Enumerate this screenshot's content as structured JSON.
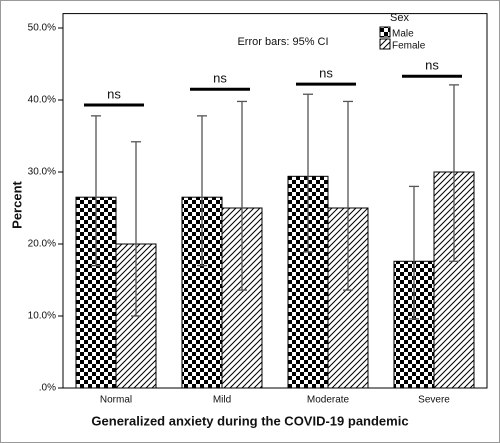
{
  "chart_data": {
    "type": "bar",
    "x_label": "Generalized anxiety during the COVID-19 pandemic",
    "y_label": "Percent",
    "annotation": "Error bars: 95% CI",
    "legend_title": "Sex",
    "categories": [
      "Normal",
      "Mild",
      "Moderate",
      "Severe"
    ],
    "series": [
      {
        "name": "Male",
        "pattern": "checker",
        "color": "#000000",
        "values": [
          26.5,
          26.5,
          29.4,
          17.6
        ],
        "ci_low": [
          17.0,
          17.0,
          18.9,
          9.6
        ],
        "ci_high": [
          37.8,
          37.8,
          40.8,
          28.0
        ]
      },
      {
        "name": "Female",
        "pattern": "hatch",
        "color": "#000000",
        "values": [
          20.0,
          25.0,
          25.0,
          30.0
        ],
        "ci_low": [
          10.0,
          13.6,
          13.6,
          17.6
        ],
        "ci_high": [
          34.2,
          39.8,
          39.8,
          42.1
        ]
      }
    ],
    "significance": [
      {
        "label": "ns",
        "y": 39.3
      },
      {
        "label": "ns",
        "y": 41.5
      },
      {
        "label": "ns",
        "y": 42.2
      },
      {
        "label": "ns",
        "y": 43.3
      }
    ],
    "ylim": [
      0,
      52
    ],
    "yticks": [
      {
        "value": 0,
        "label": ".0%"
      },
      {
        "value": 10,
        "label": "10.0%"
      },
      {
        "value": 20,
        "label": "20.0%"
      },
      {
        "value": 30,
        "label": "30.0%"
      },
      {
        "value": 40,
        "label": "40.0%"
      },
      {
        "value": 50,
        "label": "50.0%"
      }
    ]
  }
}
